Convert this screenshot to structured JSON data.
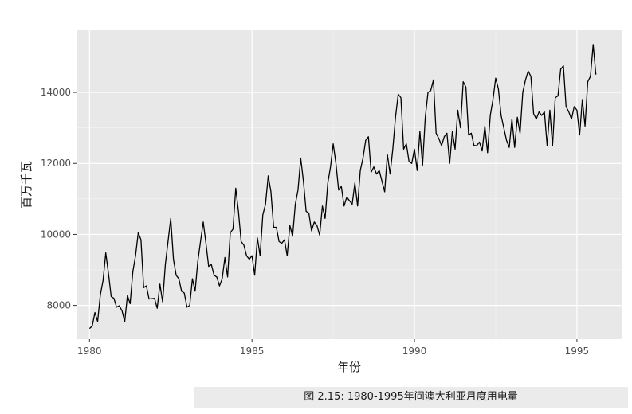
{
  "chart_data": {
    "type": "line",
    "title": "",
    "xlabel": "年份",
    "ylabel": "百万千瓦",
    "xlim": [
      1979.6,
      1996.4
    ],
    "ylim": [
      7050,
      15750
    ],
    "x_ticks": [
      1980,
      1985,
      1990,
      1995
    ],
    "y_ticks": [
      8000,
      10000,
      12000,
      14000
    ],
    "x_tick_labels": [
      "1980",
      "1985",
      "1990",
      "1995"
    ],
    "y_tick_labels": [
      "8000",
      "10000",
      "12000",
      "14000"
    ],
    "x_start": 1980,
    "x_step": 0.08333,
    "grid": true,
    "background": "#e8e8e8",
    "gridline_color": "#ffffff",
    "line_color": "#000000",
    "values": [
      7350,
      7420,
      7800,
      7550,
      8300,
      8700,
      9480,
      8900,
      8250,
      8200,
      7950,
      7990,
      7850,
      7540,
      8280,
      8050,
      8950,
      9400,
      10050,
      9850,
      8500,
      8550,
      8180,
      8190,
      8200,
      7920,
      8600,
      8100,
      9150,
      9800,
      10450,
      9300,
      8850,
      8750,
      8400,
      8350,
      7950,
      8000,
      8750,
      8400,
      9250,
      9800,
      10350,
      9750,
      9100,
      9150,
      8850,
      8800,
      8550,
      8750,
      9350,
      8800,
      10050,
      10150,
      11300,
      10650,
      9800,
      9700,
      9400,
      9300,
      9400,
      8850,
      9900,
      9400,
      10550,
      10850,
      11650,
      11200,
      10200,
      10200,
      9800,
      9750,
      9850,
      9400,
      10250,
      9950,
      10850,
      11250,
      12150,
      11500,
      10650,
      10600,
      10100,
      10350,
      10250,
      9980,
      10800,
      10450,
      11450,
      11900,
      12550,
      12000,
      11250,
      11350,
      10800,
      11050,
      10950,
      10850,
      11450,
      10800,
      11800,
      12150,
      12650,
      12750,
      11750,
      11900,
      11700,
      11800,
      11500,
      11200,
      12250,
      11700,
      12400,
      13300,
      13950,
      13850,
      12400,
      12550,
      12050,
      12000,
      12400,
      11800,
      12900,
      11950,
      13300,
      14000,
      14050,
      14350,
      12850,
      12700,
      12500,
      12750,
      12850,
      12000,
      12900,
      12400,
      13500,
      13000,
      14300,
      14150,
      12800,
      12850,
      12500,
      12500,
      12600,
      12350,
      13050,
      12300,
      13350,
      13800,
      14400,
      14100,
      13350,
      13000,
      12650,
      12450,
      13250,
      12450,
      13300,
      12850,
      14000,
      14350,
      14600,
      14450,
      13400,
      13250,
      13450,
      13350,
      13450,
      12500,
      13500,
      12500,
      13850,
      13900,
      14650,
      14750,
      13600,
      13450,
      13250,
      13600,
      13500,
      12800,
      13800,
      13050,
      14300,
      14450,
      15350,
      14500
    ]
  },
  "caption": "图 2.15: 1980-1995年间澳大利亚月度用电量"
}
